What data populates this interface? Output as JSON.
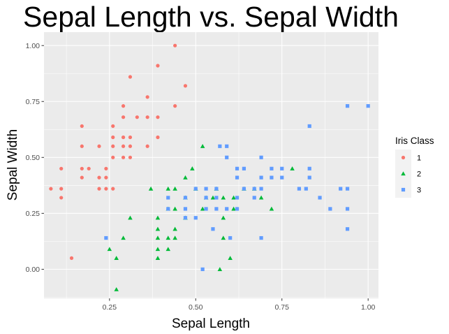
{
  "chart_data": {
    "type": "scatter",
    "title": "Sepal Length  vs.  Sepal Width",
    "xlabel": "Sepal Length",
    "ylabel": "Sepal Width",
    "xlim": [
      0.06,
      1.03
    ],
    "ylim": [
      -0.13,
      1.06
    ],
    "xticks": [
      0.25,
      0.5,
      0.75,
      1.0
    ],
    "xtick_labels": [
      "0.25",
      "0.50",
      "0.75",
      "1.00"
    ],
    "yticks": [
      0.0,
      0.25,
      0.5,
      0.75,
      1.0
    ],
    "ytick_labels": [
      "0.00",
      "0.25",
      "0.50",
      "0.75",
      "1.00"
    ],
    "grid": true,
    "legend": {
      "title": "Iris Class",
      "position": "right",
      "entries": [
        "1",
        "2",
        "3"
      ]
    },
    "colors": {
      "1": "#F8766D",
      "2": "#00BA38",
      "3": "#619CFF",
      "panel": "#EBEBEB",
      "grid": "#FFFFFF"
    },
    "series": [
      {
        "name": "1",
        "shape": "circle",
        "points": [
          [
            0.44,
            1.0
          ],
          [
            0.31,
            0.86
          ],
          [
            0.39,
            0.91
          ],
          [
            0.47,
            0.82
          ],
          [
            0.36,
            0.77
          ],
          [
            0.29,
            0.73
          ],
          [
            0.44,
            0.73
          ],
          [
            0.29,
            0.68
          ],
          [
            0.33,
            0.68
          ],
          [
            0.36,
            0.68
          ],
          [
            0.39,
            0.68
          ],
          [
            0.17,
            0.64
          ],
          [
            0.26,
            0.64
          ],
          [
            0.26,
            0.59
          ],
          [
            0.29,
            0.59
          ],
          [
            0.31,
            0.59
          ],
          [
            0.39,
            0.59
          ],
          [
            0.17,
            0.55
          ],
          [
            0.22,
            0.55
          ],
          [
            0.26,
            0.55
          ],
          [
            0.29,
            0.55
          ],
          [
            0.31,
            0.55
          ],
          [
            0.36,
            0.55
          ],
          [
            0.26,
            0.5
          ],
          [
            0.29,
            0.5
          ],
          [
            0.31,
            0.5
          ],
          [
            0.11,
            0.45
          ],
          [
            0.17,
            0.45
          ],
          [
            0.19,
            0.45
          ],
          [
            0.24,
            0.45
          ],
          [
            0.17,
            0.41
          ],
          [
            0.22,
            0.41
          ],
          [
            0.24,
            0.41
          ],
          [
            0.08,
            0.36
          ],
          [
            0.11,
            0.36
          ],
          [
            0.22,
            0.36
          ],
          [
            0.24,
            0.36
          ],
          [
            0.26,
            0.36
          ],
          [
            0.11,
            0.32
          ],
          [
            0.14,
            0.05
          ]
        ]
      },
      {
        "name": "2",
        "shape": "triangle",
        "points": [
          [
            0.52,
            0.55
          ],
          [
            0.49,
            0.45
          ],
          [
            0.78,
            0.45
          ],
          [
            0.47,
            0.41
          ],
          [
            0.37,
            0.36
          ],
          [
            0.42,
            0.36
          ],
          [
            0.44,
            0.36
          ],
          [
            0.5,
            0.36
          ],
          [
            0.56,
            0.36
          ],
          [
            0.64,
            0.36
          ],
          [
            0.67,
            0.36
          ],
          [
            0.47,
            0.32
          ],
          [
            0.53,
            0.32
          ],
          [
            0.55,
            0.32
          ],
          [
            0.58,
            0.32
          ],
          [
            0.61,
            0.32
          ],
          [
            0.69,
            0.32
          ],
          [
            0.42,
            0.27
          ],
          [
            0.44,
            0.27
          ],
          [
            0.52,
            0.27
          ],
          [
            0.61,
            0.27
          ],
          [
            0.72,
            0.27
          ],
          [
            0.31,
            0.23
          ],
          [
            0.39,
            0.23
          ],
          [
            0.47,
            0.23
          ],
          [
            0.58,
            0.23
          ],
          [
            0.39,
            0.18
          ],
          [
            0.44,
            0.18
          ],
          [
            0.39,
            0.14
          ],
          [
            0.42,
            0.14
          ],
          [
            0.44,
            0.14
          ],
          [
            0.58,
            0.14
          ],
          [
            0.29,
            0.14
          ],
          [
            0.25,
            0.09
          ],
          [
            0.39,
            0.09
          ],
          [
            0.42,
            0.09
          ],
          [
            0.27,
            0.05
          ],
          [
            0.39,
            0.05
          ],
          [
            0.6,
            0.05
          ],
          [
            0.57,
            0.0
          ],
          [
            0.27,
            -0.09
          ]
        ]
      },
      {
        "name": "3",
        "shape": "square",
        "points": [
          [
            0.94,
            0.73
          ],
          [
            1.0,
            0.73
          ],
          [
            0.83,
            0.64
          ],
          [
            0.57,
            0.55
          ],
          [
            0.59,
            0.55
          ],
          [
            0.59,
            0.5
          ],
          [
            0.69,
            0.5
          ],
          [
            0.62,
            0.45
          ],
          [
            0.64,
            0.45
          ],
          [
            0.72,
            0.45
          ],
          [
            0.75,
            0.45
          ],
          [
            0.83,
            0.45
          ],
          [
            0.62,
            0.41
          ],
          [
            0.69,
            0.41
          ],
          [
            0.72,
            0.41
          ],
          [
            0.75,
            0.41
          ],
          [
            0.83,
            0.41
          ],
          [
            0.5,
            0.36
          ],
          [
            0.53,
            0.36
          ],
          [
            0.56,
            0.36
          ],
          [
            0.64,
            0.36
          ],
          [
            0.67,
            0.36
          ],
          [
            0.69,
            0.36
          ],
          [
            0.8,
            0.36
          ],
          [
            0.82,
            0.36
          ],
          [
            0.92,
            0.36
          ],
          [
            0.94,
            0.36
          ],
          [
            0.42,
            0.32
          ],
          [
            0.47,
            0.32
          ],
          [
            0.53,
            0.32
          ],
          [
            0.56,
            0.32
          ],
          [
            0.62,
            0.32
          ],
          [
            0.67,
            0.32
          ],
          [
            0.86,
            0.32
          ],
          [
            0.42,
            0.27
          ],
          [
            0.47,
            0.27
          ],
          [
            0.53,
            0.27
          ],
          [
            0.56,
            0.27
          ],
          [
            0.59,
            0.27
          ],
          [
            0.62,
            0.27
          ],
          [
            0.89,
            0.27
          ],
          [
            0.94,
            0.27
          ],
          [
            0.47,
            0.23
          ],
          [
            0.5,
            0.23
          ],
          [
            0.55,
            0.18
          ],
          [
            0.94,
            0.18
          ],
          [
            0.24,
            0.14
          ],
          [
            0.6,
            0.14
          ],
          [
            0.69,
            0.14
          ],
          [
            0.52,
            0.0
          ]
        ]
      }
    ]
  }
}
